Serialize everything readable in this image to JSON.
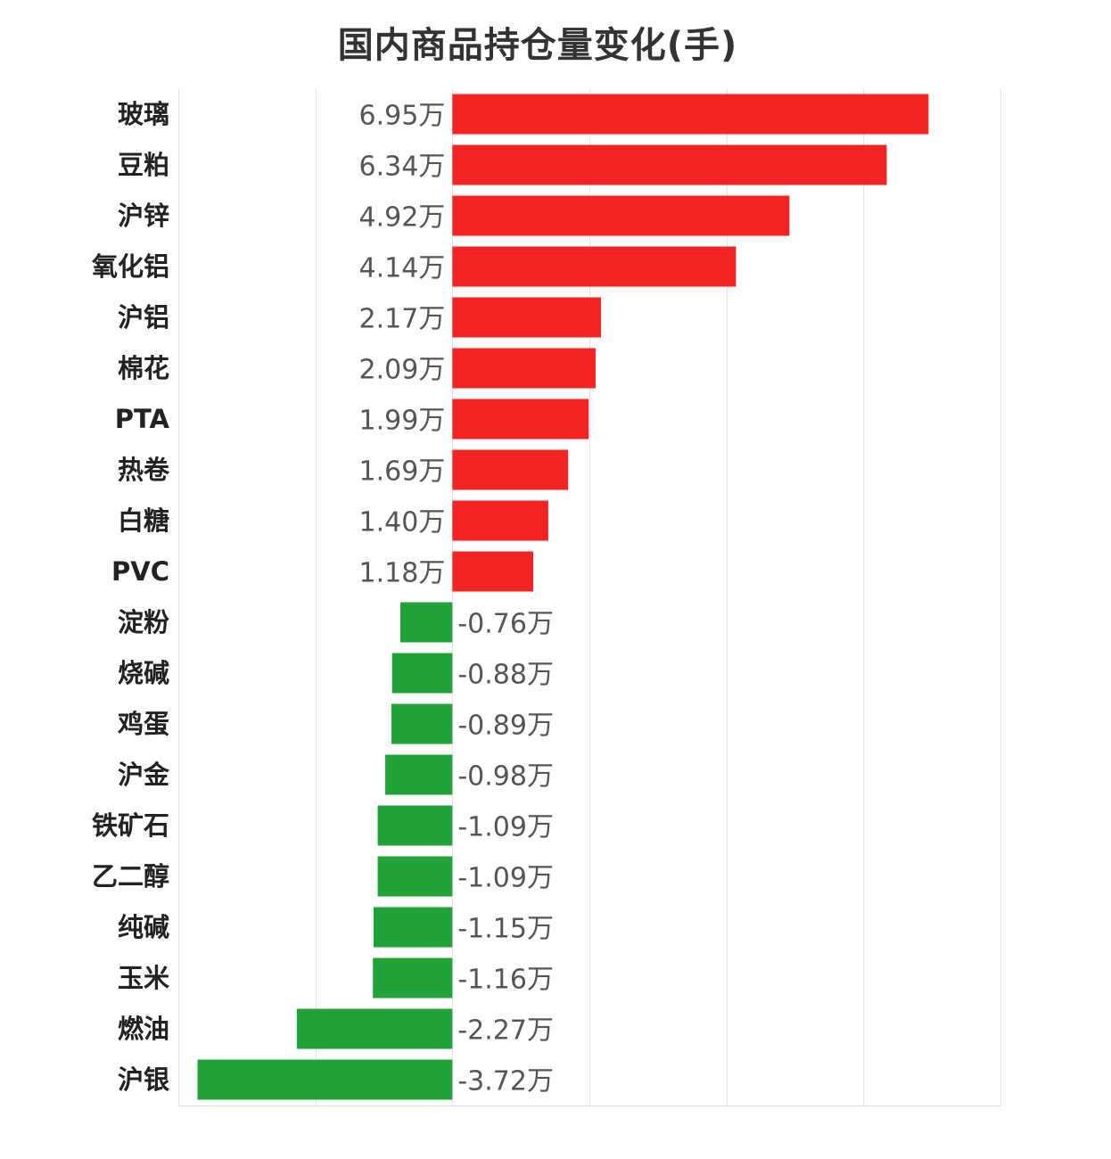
{
  "chart_data": {
    "type": "bar",
    "orientation": "horizontal",
    "title": "国内商品持仓量变化(手)",
    "unit_suffix": "万",
    "categories": [
      "玻璃",
      "豆粕",
      "沪锌",
      "氧化铝",
      "沪铝",
      "棉花",
      "PTA",
      "热卷",
      "白糖",
      "PVC",
      "淀粉",
      "烧碱",
      "鸡蛋",
      "沪金",
      "铁矿石",
      "乙二醇",
      "纯碱",
      "玉米",
      "燃油",
      "沪银"
    ],
    "values": [
      6.95,
      6.34,
      4.92,
      4.14,
      2.17,
      2.09,
      1.99,
      1.69,
      1.4,
      1.18,
      -0.76,
      -0.88,
      -0.89,
      -0.98,
      -1.09,
      -1.09,
      -1.15,
      -1.16,
      -2.27,
      -3.72
    ],
    "value_labels": [
      "6.95万",
      "6.34万",
      "4.92万",
      "4.14万",
      "2.17万",
      "2.09万",
      "1.99万",
      "1.69万",
      "1.40万",
      "1.18万",
      "-0.76万",
      "-0.88万",
      "-0.89万",
      "-0.98万",
      "-1.09万",
      "-1.09万",
      "-1.15万",
      "-1.16万",
      "-2.27万",
      "-3.72万"
    ],
    "xlim": [
      -4,
      8
    ],
    "gridlines": [
      -4,
      -2,
      0,
      2,
      4,
      6,
      8
    ],
    "grid": true,
    "legend": "none",
    "colors": {
      "positive": "#f52424",
      "negative": "#21a33a"
    }
  }
}
